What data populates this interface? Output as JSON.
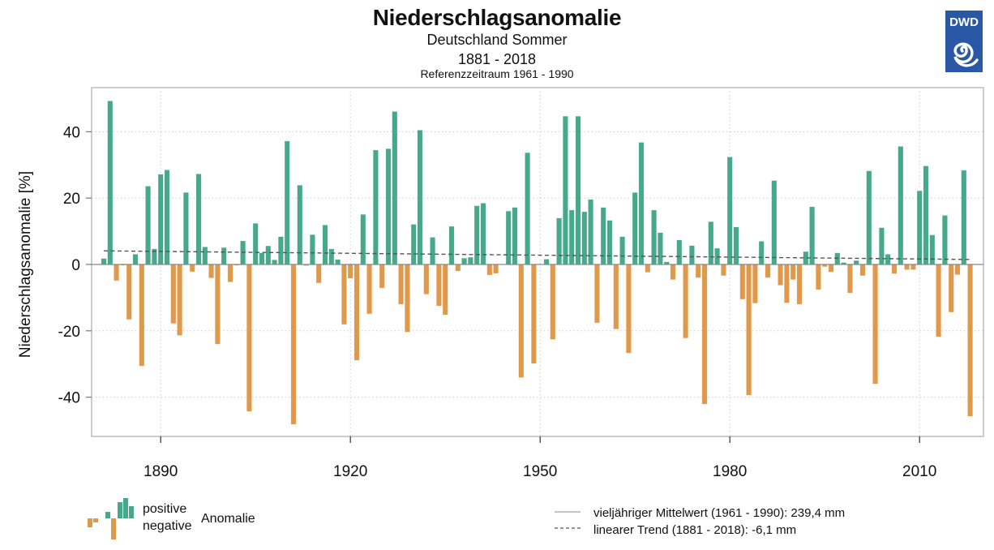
{
  "header": {
    "title": "Niederschlagsanomalie",
    "subtitle": "Deutschland Sommer",
    "period": "1881 - 2018",
    "reference": "Referenzzeitraum 1961 - 1990",
    "logo_text": "DWD"
  },
  "colors": {
    "positive": "#45a98a",
    "negative": "#e0984a",
    "logo_blue": "#2b58a6",
    "grid": "#cccccc",
    "axis": "#999999",
    "trend": "#555555"
  },
  "legend": {
    "positive_label": "positive",
    "negative_label": "negative",
    "anomaly_label": "Anomalie",
    "mean_label": "vieljähriger Mittelwert (1961 - 1990): 239,4 mm",
    "trend_label": "linearer Trend (1881 - 2018): -6,1 mm"
  },
  "chart_data": {
    "type": "bar",
    "title": "Niederschlagsanomalie",
    "subtitle": "Deutschland Sommer",
    "xlabel": "",
    "ylabel": "Niederschlagsanomalie [%]",
    "xlim": [
      1878,
      2022
    ],
    "ylim": [
      -52,
      53
    ],
    "xticks": [
      1890,
      1920,
      1950,
      1980,
      2010
    ],
    "xtick_labels": [
      "1890",
      "1920",
      "1950",
      "1980",
      "2010"
    ],
    "yticks": [
      -40,
      -20,
      0,
      20,
      40
    ],
    "ytick_labels": [
      "-40",
      "-20",
      "0",
      "20",
      "40"
    ],
    "grid": true,
    "legend_position": "bottom",
    "start_year": 1881,
    "values": [
      1.8,
      49.3,
      -4.9,
      -0.3,
      -16.6,
      3.1,
      -30.6,
      23.6,
      4.7,
      27.2,
      28.5,
      -17.8,
      -21.4,
      21.7,
      -2.2,
      27.3,
      5.3,
      -4.1,
      -24.0,
      5.1,
      -5.3,
      -0.3,
      7.1,
      -44.3,
      12.4,
      3.5,
      5.6,
      1.4,
      8.4,
      37.2,
      -48.2,
      23.9,
      -0.4,
      9.0,
      -5.6,
      11.9,
      4.7,
      1.5,
      -18.1,
      -4.2,
      -28.9,
      15.1,
      -14.9,
      34.5,
      -7.1,
      34.9,
      46.1,
      -12.0,
      -20.4,
      12.1,
      40.5,
      -9.0,
      8.2,
      -12.5,
      -15.2,
      11.5,
      -2.0,
      1.9,
      2.2,
      17.7,
      18.5,
      -3.2,
      -2.7,
      0.0,
      16.1,
      17.2,
      -34.1,
      33.7,
      -29.9,
      0.0,
      1.6,
      -22.6,
      14.0,
      44.7,
      16.4,
      44.7,
      15.9,
      19.6,
      -17.6,
      17.2,
      13.3,
      -19.5,
      8.4,
      -26.7,
      21.7,
      36.8,
      -2.4,
      16.4,
      9.6,
      0.8,
      -4.6,
      7.4,
      -22.2,
      5.7,
      -4.0,
      -42.1,
      12.9,
      4.9,
      -3.4,
      32.4,
      11.3,
      -10.5,
      -39.4,
      -11.7,
      7.0,
      -4.0,
      25.3,
      -6.3,
      -11.6,
      -4.6,
      -12.0,
      3.9,
      17.4,
      -7.6,
      -0.7,
      -2.3,
      3.5,
      0.6,
      -8.6,
      1.2,
      -3.4,
      28.2,
      -36.0,
      11.1,
      3.1,
      -2.8,
      35.6,
      -1.6,
      -1.6,
      22.2,
      29.7,
      8.9,
      -21.8,
      14.8,
      -14.4,
      -3.1,
      28.4,
      -45.8
    ],
    "trend": {
      "start": [
        1881,
        4.1
      ],
      "end": [
        2018,
        1.5
      ]
    },
    "mean_line_value": 0,
    "legend_entries": [
      "positive Anomalie",
      "negative Anomalie",
      "vieljähriger Mittelwert (1961 - 1990): 239,4 mm",
      "linearer Trend (1881 - 2018): -6,1 mm"
    ]
  }
}
